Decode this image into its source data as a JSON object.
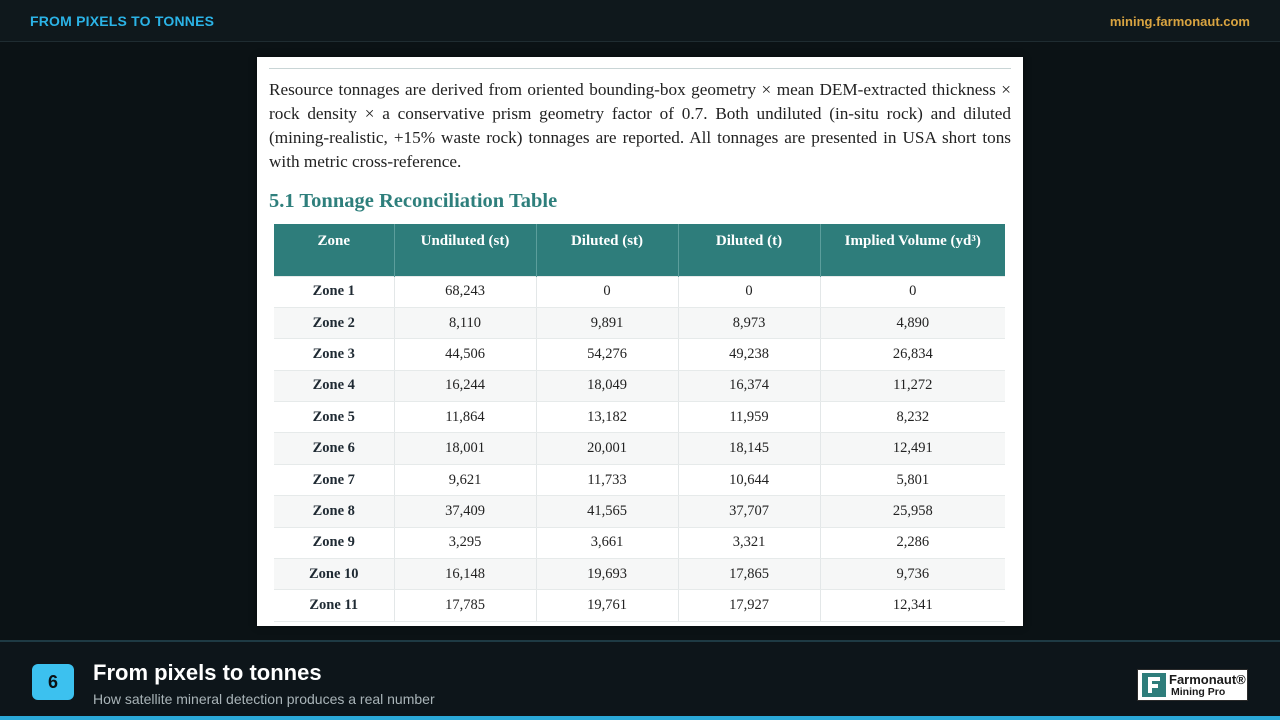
{
  "header": {
    "left_title": "FROM PIXELS TO TONNES",
    "right_url": "mining.farmonaut.com"
  },
  "document": {
    "paragraph": "Resource tonnages are derived from oriented bounding-box geometry × mean DEM-extracted thickness × rock density × a conservative prism geometry factor of 0.7. Both undiluted (in-situ rock) and diluted (mining-realistic, +15% waste rock) tonnages are reported. All tonnages are presented in USA short tons with metric cross-reference.",
    "section_title": "5.1 Tonnage Reconciliation Table",
    "table": {
      "columns": [
        "Zone",
        "Undiluted (st)",
        "Diluted (st)",
        "Diluted (t)",
        "Implied Volume (yd³)"
      ],
      "rows": [
        [
          "Zone 1",
          "68,243",
          "0",
          "0",
          "0"
        ],
        [
          "Zone 2",
          "8,110",
          "9,891",
          "8,973",
          "4,890"
        ],
        [
          "Zone 3",
          "44,506",
          "54,276",
          "49,238",
          "26,834"
        ],
        [
          "Zone 4",
          "16,244",
          "18,049",
          "16,374",
          "11,272"
        ],
        [
          "Zone 5",
          "11,864",
          "13,182",
          "11,959",
          "8,232"
        ],
        [
          "Zone 6",
          "18,001",
          "20,001",
          "18,145",
          "12,491"
        ],
        [
          "Zone 7",
          "9,621",
          "11,733",
          "10,644",
          "5,801"
        ],
        [
          "Zone 8",
          "37,409",
          "41,565",
          "37,707",
          "25,958"
        ],
        [
          "Zone 9",
          "3,295",
          "3,661",
          "3,321",
          "2,286"
        ],
        [
          "Zone 10",
          "16,148",
          "19,693",
          "17,865",
          "9,736"
        ],
        [
          "Zone 11",
          "17,785",
          "19,761",
          "17,927",
          "12,341"
        ]
      ]
    }
  },
  "footer": {
    "slide_number": "6",
    "title": "From pixels to tonnes",
    "subtitle": "How satellite mineral detection produces a real number",
    "logo_name": "Farmonaut®",
    "logo_sub": "Mining Pro"
  },
  "colors": {
    "accent_blue": "#2bb3e6",
    "accent_gold": "#d9a441",
    "teal": "#2e7d7b"
  }
}
